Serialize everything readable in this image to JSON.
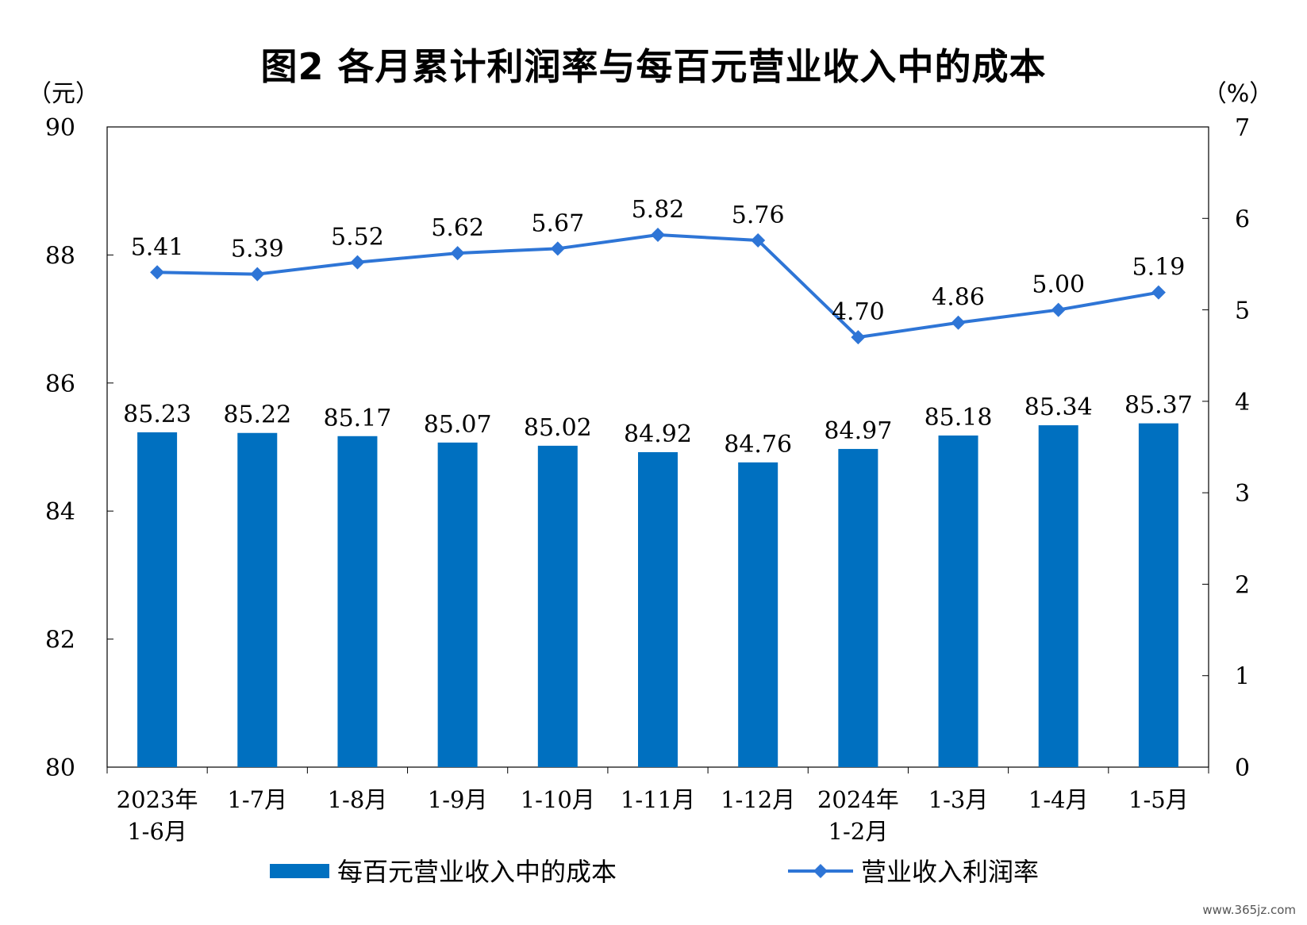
{
  "chart_data": {
    "type": "bar",
    "title": "图2  各月累计利润率与每百元营业收入中的成本",
    "left_axis_unit": "（元）",
    "right_axis_unit": "（%）",
    "categories": [
      [
        "2023年",
        "1-6月"
      ],
      [
        "1-7月"
      ],
      [
        "1-8月"
      ],
      [
        "1-9月"
      ],
      [
        "1-10月"
      ],
      [
        "1-11月"
      ],
      [
        "1-12月"
      ],
      [
        "2024年",
        "1-2月"
      ],
      [
        "1-3月"
      ],
      [
        "1-4月"
      ],
      [
        "1-5月"
      ]
    ],
    "y_left": {
      "min": 80,
      "max": 90,
      "ticks": [
        80,
        82,
        84,
        86,
        88,
        90
      ]
    },
    "y_right": {
      "min": 0,
      "max": 7,
      "ticks": [
        0,
        1,
        2,
        3,
        4,
        5,
        6,
        7
      ]
    },
    "series": [
      {
        "name": "每百元营业收入中的成本",
        "type": "bar",
        "axis": "left",
        "color": "#0070C0",
        "values": [
          85.23,
          85.22,
          85.17,
          85.07,
          85.02,
          84.92,
          84.76,
          84.97,
          85.18,
          85.34,
          85.37
        ],
        "labels": [
          "85.23",
          "85.22",
          "85.17",
          "85.07",
          "85.02",
          "84.92",
          "84.76",
          "84.97",
          "85.18",
          "85.34",
          "85.37"
        ]
      },
      {
        "name": "营业收入利润率",
        "type": "line",
        "axis": "right",
        "color": "#2E75D6",
        "marker": "diamond",
        "values": [
          5.41,
          5.39,
          5.52,
          5.62,
          5.67,
          5.82,
          5.76,
          4.7,
          4.86,
          5.0,
          5.19
        ],
        "labels": [
          "5.41",
          "5.39",
          "5.52",
          "5.62",
          "5.67",
          "5.82",
          "5.76",
          "4.70",
          "4.86",
          "5.00",
          "5.19"
        ]
      }
    ],
    "legend_position": "bottom",
    "grid": false
  },
  "watermark": "www.365jz.com"
}
